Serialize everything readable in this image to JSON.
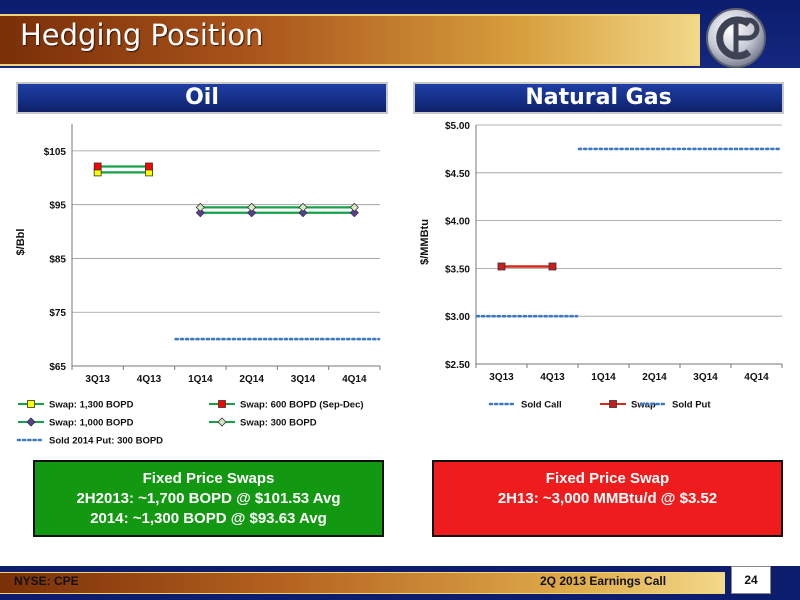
{
  "header": {
    "title": "Hedging Position"
  },
  "sections": {
    "oil": "Oil",
    "gas": "Natural Gas"
  },
  "colors": {
    "swap_1300": "#ffff00",
    "swap_600": "#ff0000",
    "swap_1000": "#5b3c9a",
    "swap_300": "#d9e8c4",
    "oil_line": "#15a04a",
    "sold_put": "#3d78c2",
    "sold_call": "#3d78c2",
    "gas_swap": "#d62a1d"
  },
  "chart_data": [
    {
      "type": "line",
      "categories": [
        "3Q13",
        "4Q13",
        "1Q14",
        "2Q14",
        "3Q14",
        "4Q14"
      ],
      "ylabel": "$/Bbl",
      "ylim": [
        65,
        110
      ],
      "yticks": [
        "$65",
        "$75",
        "$85",
        "$95",
        "$105"
      ],
      "yticks_values": [
        65,
        75,
        85,
        95,
        105
      ],
      "grid": true,
      "legend_position": "bottom",
      "series": [
        {
          "name": "Swap: 1,300 BOPD",
          "values": [
            101.0,
            101.0,
            null,
            null,
            null,
            null
          ],
          "style": "solid",
          "marker": "square",
          "marker_color": "#ffff00",
          "line_color": "#15a04a"
        },
        {
          "name": "Swap: 600 BOPD (Sep-Dec)",
          "values": [
            102.1,
            102.1,
            null,
            null,
            null,
            null
          ],
          "style": "solid",
          "marker": "square",
          "marker_color": "#ff0000",
          "line_color": "#15a04a"
        },
        {
          "name": "Swap: 1,000 BOPD",
          "values": [
            null,
            null,
            93.5,
            93.5,
            93.5,
            93.5
          ],
          "style": "solid",
          "marker": "diamond",
          "marker_color": "#5b3c9a",
          "line_color": "#15a04a"
        },
        {
          "name": "Swap: 300 BOPD",
          "values": [
            null,
            null,
            94.5,
            94.5,
            94.5,
            94.5
          ],
          "style": "solid",
          "marker": "diamond",
          "marker_color": "#d9e8c4",
          "line_color": "#15a04a"
        },
        {
          "name": "Sold 2014 Put: 300 BOPD",
          "values": [
            null,
            null,
            70,
            70,
            70,
            70
          ],
          "style": "dotted",
          "marker": "none",
          "line_color": "#3d78c2"
        }
      ]
    },
    {
      "type": "line",
      "categories": [
        "3Q13",
        "4Q13",
        "1Q14",
        "2Q14",
        "3Q14",
        "4Q14"
      ],
      "ylabel": "$/MMBtu",
      "ylim": [
        2.5,
        5.0
      ],
      "yticks": [
        "$2.50",
        "$3.00",
        "$3.50",
        "$4.00",
        "$4.50",
        "$5.00"
      ],
      "yticks_values": [
        2.5,
        3.0,
        3.5,
        4.0,
        4.5,
        5.0
      ],
      "grid": true,
      "legend_position": "bottom",
      "series": [
        {
          "name": "Sold Call",
          "values": [
            null,
            null,
            4.75,
            4.75,
            4.75,
            4.75
          ],
          "style": "dotted",
          "marker": "none",
          "line_color": "#3d78c2"
        },
        {
          "name": "Swap",
          "values": [
            3.52,
            3.52,
            null,
            null,
            null,
            null
          ],
          "style": "solid",
          "marker": "square",
          "marker_color": "#c81e1e",
          "line_color": "#d62a1d"
        },
        {
          "name": "Sold Put",
          "values": [
            3.0,
            3.0,
            null,
            null,
            null,
            null
          ],
          "style": "dotted",
          "marker": "none",
          "line_color": "#3d78c2"
        }
      ]
    }
  ],
  "boxes": {
    "oil": {
      "line1": "Fixed Price Swaps",
      "line2": "2H2013: ~1,700 BOPD @ $101.53 Avg",
      "line3": "2014: ~1,300 BOPD @ $93.63 Avg"
    },
    "gas": {
      "line1": "Fixed Price Swap",
      "line2": "2H13: ~3,000 MMBtu/d @ $3.52"
    }
  },
  "footer": {
    "left": "NYSE: CPE",
    "right": "2Q 2013 Earnings Call",
    "page": "24"
  }
}
